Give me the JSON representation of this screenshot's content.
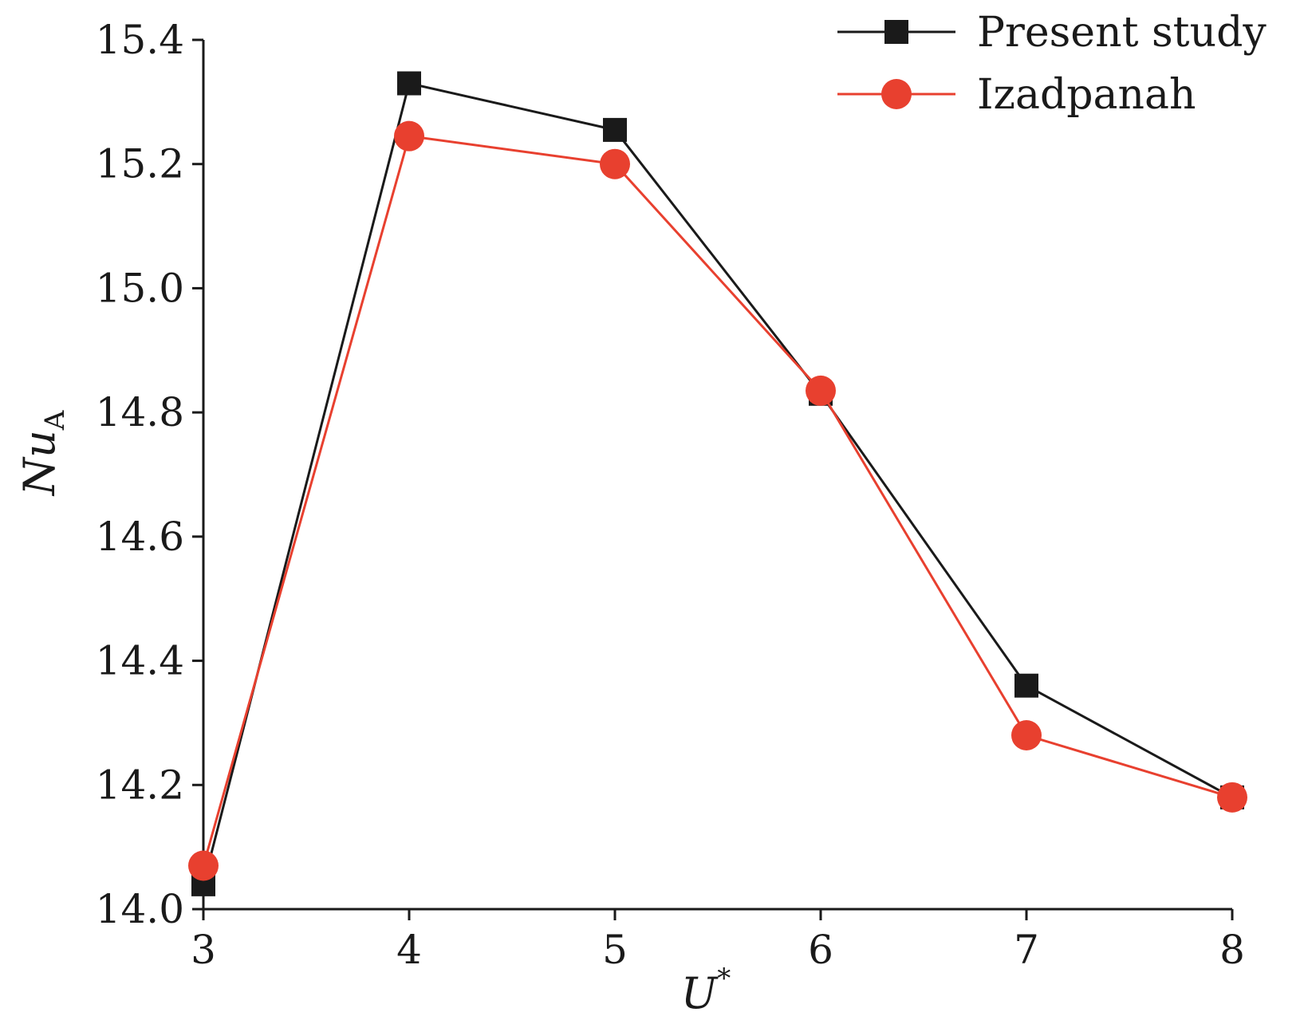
{
  "chart_data": {
    "type": "line",
    "title": "",
    "xlabel": "U*",
    "ylabel": "NuA",
    "xlabel_parts": {
      "main": "U",
      "sup": "*"
    },
    "ylabel_parts": {
      "main": "Nu",
      "sub": "A"
    },
    "x": [
      3,
      4,
      5,
      6,
      7,
      8
    ],
    "xlim": [
      3,
      8
    ],
    "ylim": [
      14.0,
      15.4
    ],
    "x_ticks": [
      "3",
      "4",
      "5",
      "6",
      "7",
      "8"
    ],
    "y_ticks": [
      "14.0",
      "14.2",
      "14.4",
      "14.6",
      "14.8",
      "15.0",
      "15.2",
      "15.4"
    ],
    "grid": false,
    "legend_position": "top-right",
    "series": [
      {
        "name": "Present study",
        "marker": "square",
        "color": "#1a1a1a",
        "values": [
          14.04,
          15.33,
          15.255,
          14.83,
          14.36,
          14.18
        ]
      },
      {
        "name": "Izadpanah",
        "marker": "circle",
        "color": "#e8402f",
        "values": [
          14.07,
          15.245,
          15.2,
          14.835,
          14.28,
          14.18
        ]
      }
    ]
  }
}
